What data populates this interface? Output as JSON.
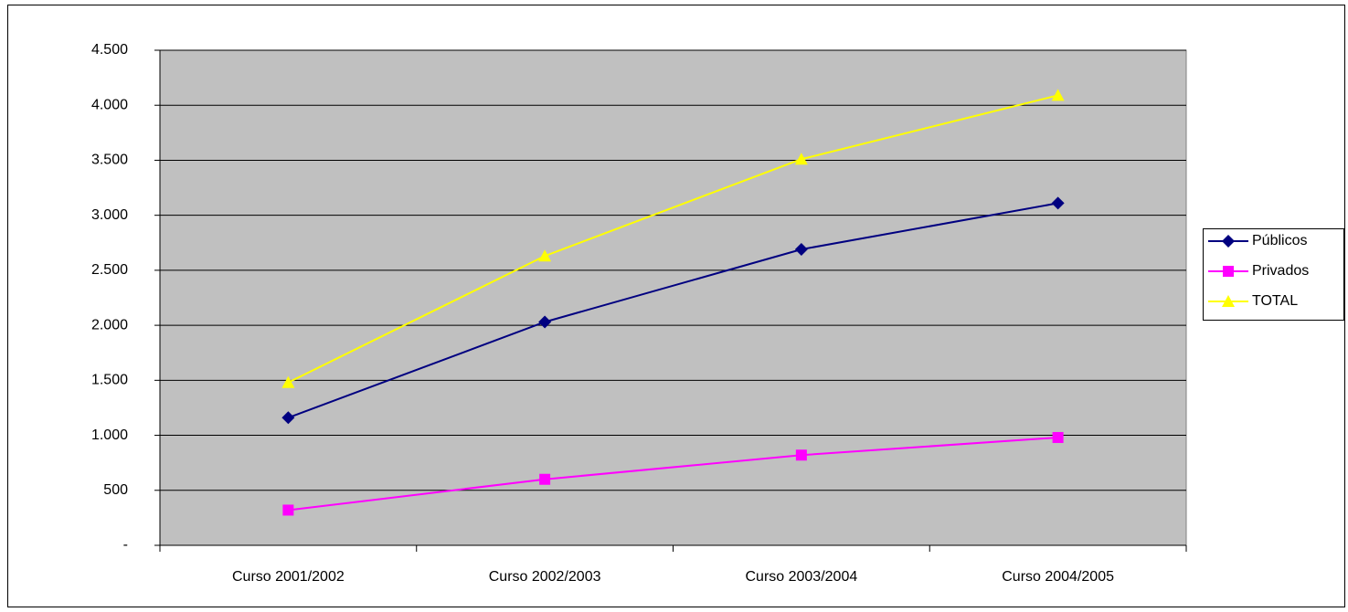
{
  "chart_data": {
    "type": "line",
    "categories": [
      "Curso 2001/2002",
      "Curso 2002/2003",
      "Curso 2003/2004",
      "Curso 2004/2005"
    ],
    "series": [
      {
        "name": "Públicos",
        "color": "#000080",
        "marker": "diamond",
        "values": [
          1160,
          2030,
          2690,
          3110
        ]
      },
      {
        "name": "Privados",
        "color": "#ff00ff",
        "marker": "square",
        "values": [
          320,
          600,
          820,
          980
        ]
      },
      {
        "name": "TOTAL",
        "color": "#ffff00",
        "marker": "triangle",
        "values": [
          1480,
          2630,
          3510,
          4090
        ]
      }
    ],
    "ylim": [
      0,
      4500
    ],
    "yticks": [
      {
        "value": 0,
        "label": "-"
      },
      500,
      {
        "value": 1000,
        "label": "1.000"
      },
      {
        "value": 1500,
        "label": "1.500"
      },
      {
        "value": 2000,
        "label": "2.000"
      },
      {
        "value": 2500,
        "label": "2.500"
      },
      {
        "value": 3000,
        "label": "3.000"
      },
      {
        "value": 3500,
        "label": "3.500"
      },
      {
        "value": 4000,
        "label": "4.000"
      },
      {
        "value": 4500,
        "label": "4.500"
      }
    ],
    "grid": true,
    "plot_background": "#c0c0c0",
    "legend": "right"
  }
}
